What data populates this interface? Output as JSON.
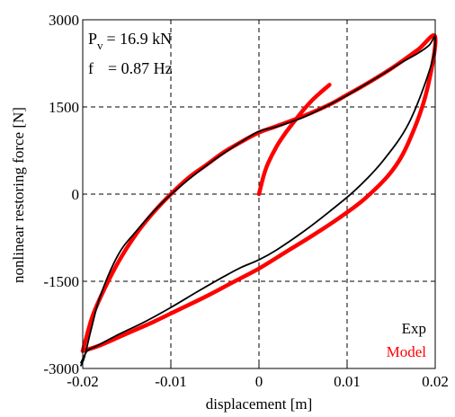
{
  "chart_data": {
    "type": "line",
    "xlabel": "displacement [m]",
    "ylabel": "nonlinear restoring force [N]",
    "xlim": [
      -0.02,
      0.02
    ],
    "ylim": [
      -3000,
      3000
    ],
    "x_ticks": [
      "-0.02",
      "-0.01",
      "0",
      "0.01",
      "0.02"
    ],
    "y_ticks": [
      "-3000",
      "-1500",
      "0",
      "1500",
      "3000"
    ],
    "grid": "dashed",
    "legend_placement": "bottom-right",
    "annotation": {
      "pv_symbol": "P",
      "pv_sub": "v",
      "pv_value": "=  16.9 kN",
      "f_symbol": "f",
      "f_value": "=  0.87 Hz"
    },
    "series": [
      {
        "name": "Exp",
        "color": "#000000",
        "x": [
          -0.0202,
          -0.0195,
          -0.0185,
          -0.016,
          -0.013,
          -0.01,
          -0.007,
          -0.004,
          -0.002,
          0,
          0.002,
          0.005,
          0.008,
          0.011,
          0.014,
          0.017,
          0.0195,
          0.02,
          0.0193,
          0.018,
          0.016,
          0.014,
          0.012,
          0.01,
          0.008,
          0.005,
          0.002,
          0,
          -0.002,
          -0.005,
          -0.008,
          -0.011,
          -0.014,
          -0.016,
          -0.018,
          -0.019,
          -0.0198,
          -0.0202
        ],
        "y": [
          -2900,
          -2700,
          -2620,
          -2420,
          -2200,
          -1950,
          -1680,
          -1420,
          -1260,
          -1130,
          -960,
          -650,
          -300,
          80,
          560,
          1220,
          2200,
          2700,
          2560,
          2420,
          2250,
          2060,
          1880,
          1700,
          1540,
          1320,
          1160,
          1080,
          900,
          600,
          250,
          -150,
          -650,
          -1050,
          -1750,
          -2300,
          -2800,
          -2950
        ]
      },
      {
        "name": "Model",
        "color": "#ff0000",
        "x": [
          -0.02,
          -0.018,
          -0.015,
          -0.012,
          -0.009,
          -0.006,
          -0.003,
          0,
          0.003,
          0.006,
          0.009,
          0.012,
          0.015,
          0.017,
          0.019,
          0.02,
          0.018,
          0.015,
          0.012,
          0.01,
          0.008,
          0.005,
          0.002,
          0,
          -0.002,
          -0.004,
          -0.006,
          -0.008,
          -0.01,
          -0.012,
          -0.014,
          -0.016,
          -0.018,
          -0.019,
          -0.02
        ],
        "y": [
          -2700,
          -2600,
          -2400,
          -2200,
          -1980,
          -1760,
          -1520,
          -1280,
          -1000,
          -720,
          -420,
          -80,
          380,
          900,
          1750,
          2700,
          2480,
          2160,
          1880,
          1710,
          1540,
          1340,
          1170,
          1060,
          900,
          720,
          500,
          280,
          0,
          -320,
          -700,
          -1180,
          -1780,
          -2150,
          -2700
        ]
      },
      {
        "name": "",
        "color": "#ff0000",
        "x": [
          0,
          0.0005,
          0.001,
          0.002,
          0.003,
          0.004,
          0.005,
          0.006,
          0.007,
          0.008
        ],
        "y": [
          0,
          300,
          520,
          820,
          1050,
          1250,
          1440,
          1610,
          1750,
          1880
        ]
      }
    ]
  }
}
